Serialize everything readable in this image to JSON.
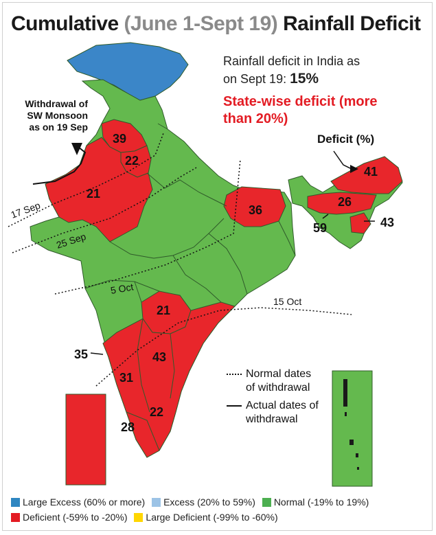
{
  "title": {
    "part1": "Cumulative ",
    "part2": "(June 1-Sept 19)",
    "part3": " Rainfall Deficit"
  },
  "info": {
    "line1": "Rainfall deficit in India as",
    "line2": "on Sept 19: ",
    "national_deficit": "15%"
  },
  "statewise": {
    "line1": "State-wise deficit (more",
    "line2": "than 20%)"
  },
  "deficit_label": "Deficit (%)",
  "withdrawal_note": {
    "line1": "Withdrawal of",
    "line2": "SW Monsoon",
    "line3": "as on 19 Sep"
  },
  "state_values": {
    "punjab": "39",
    "haryana": "22",
    "rajasthan": "21",
    "bihar": "36",
    "arunachal": "41",
    "meghalaya_assam": "26",
    "tripura": "59",
    "manipur": "43",
    "telangana": "21",
    "karnataka_interior": "43",
    "goa": "35",
    "karnataka_coast": "31",
    "tamil_nadu": "22",
    "kerala": "28"
  },
  "withdrawal_dates": {
    "sep17": "17 Sep",
    "sep25": "25 Sep",
    "oct5": "5 Oct",
    "oct15": "15 Oct"
  },
  "line_legend": {
    "normal": "Normal dates",
    "normal2": "of withdrawal",
    "actual": "Actual dates of",
    "actual2": "withdrawal"
  },
  "category_legend": [
    {
      "label": "Large Excess (60% or more)",
      "color": "#2e86c1"
    },
    {
      "label": "Excess (20% to 59%)",
      "color": "#9cc3e6"
    },
    {
      "label": "Normal (-19% to 19%)",
      "color": "#4caf50"
    },
    {
      "label": "Deficient (-59% to -20%)",
      "color": "#e31b23"
    },
    {
      "label": "Large Deficient (-99% to -60%)",
      "color": "#ffd600"
    }
  ],
  "colors": {
    "green": "#64b94e",
    "red": "#e8262b",
    "blue": "#3b86c8",
    "border": "#2f5a2a"
  }
}
